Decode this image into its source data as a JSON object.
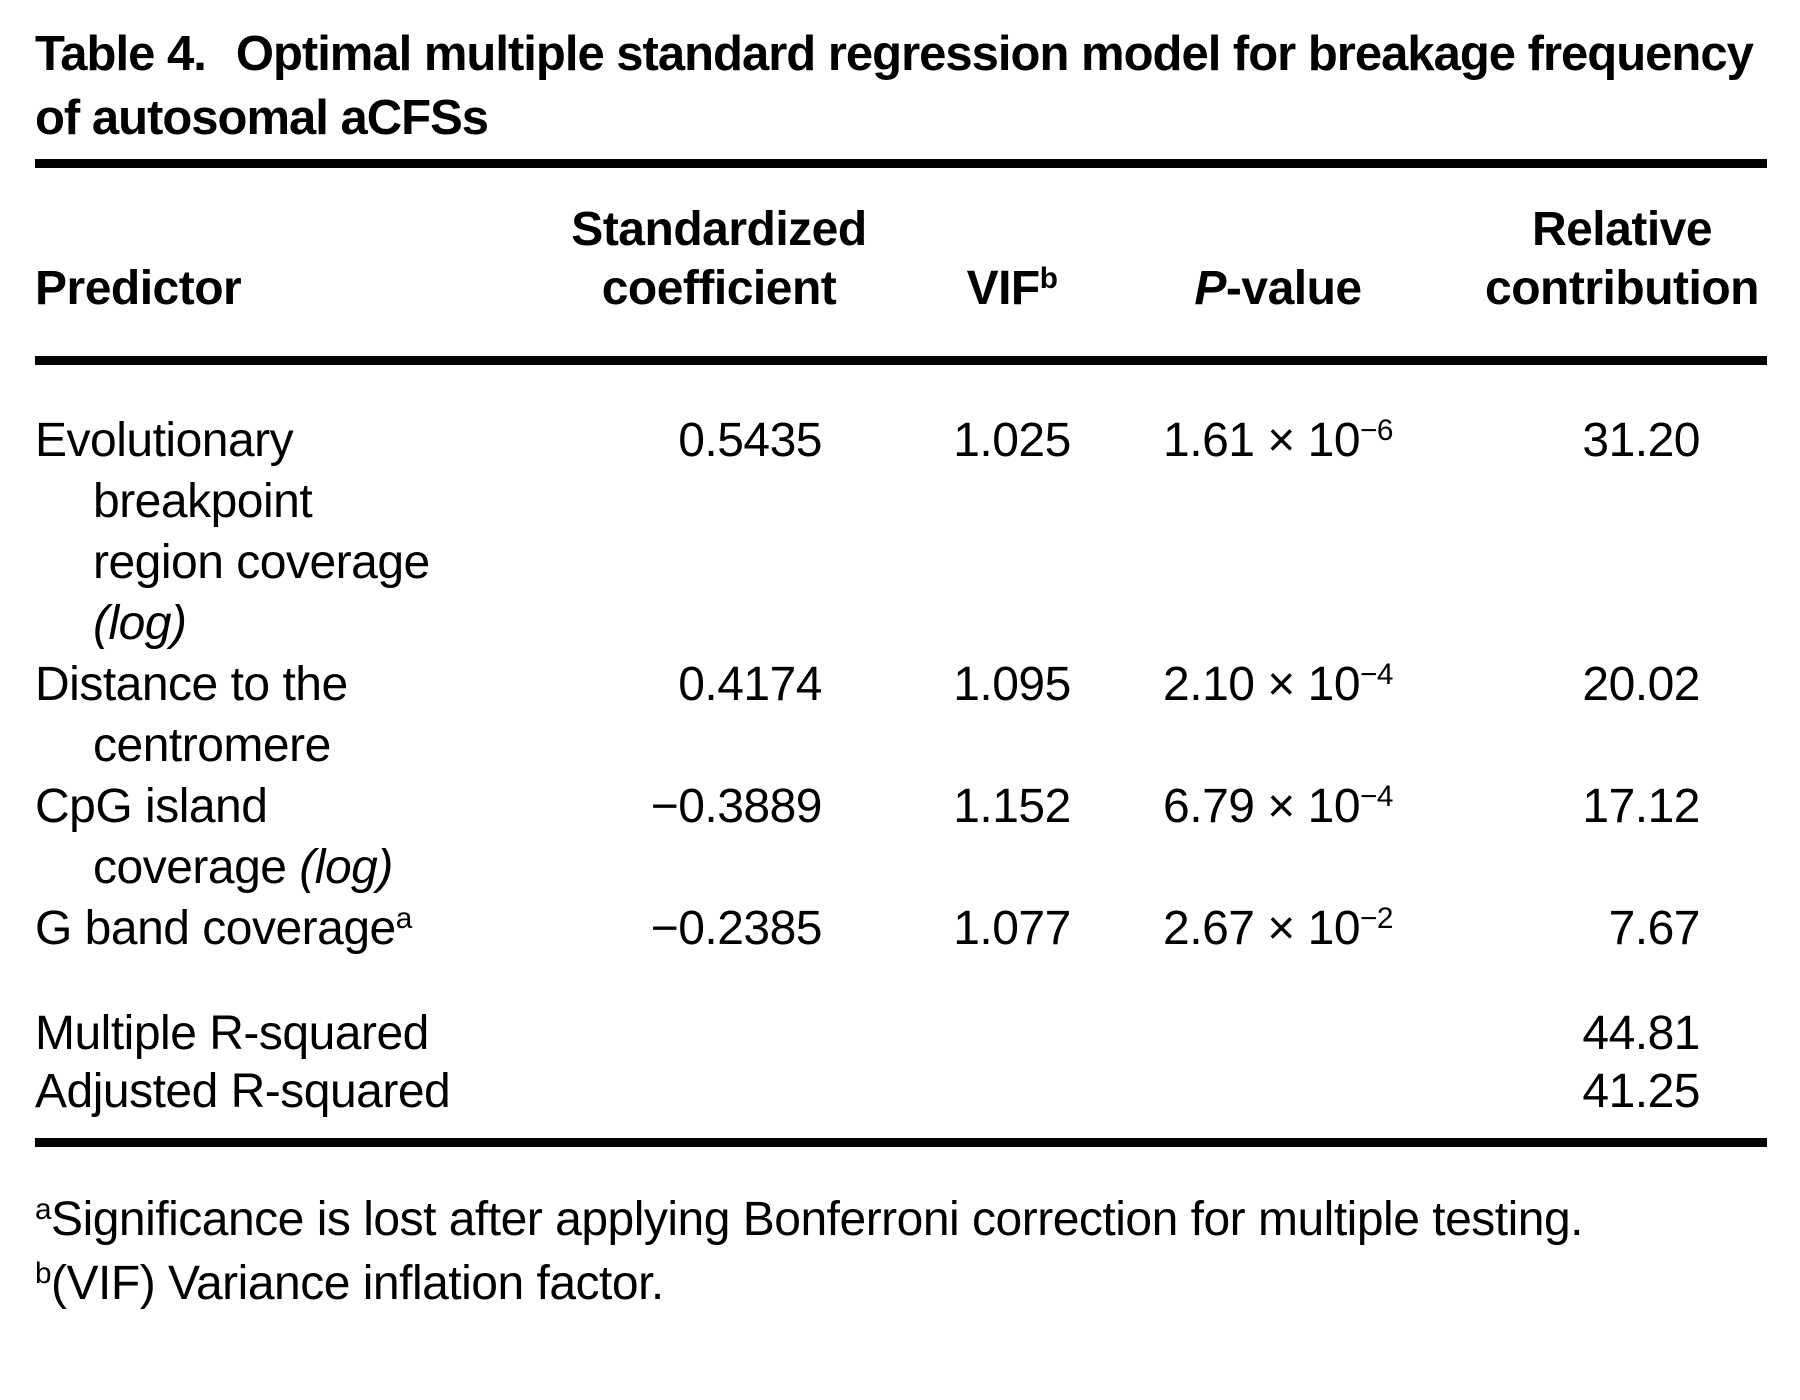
{
  "colors": {
    "background": "#ffffff",
    "text": "#000000",
    "rule": "#000000"
  },
  "title": {
    "label": "Table 4.",
    "text": "Optimal multiple standard regression model for breakage frequency of autosomal aCFSs"
  },
  "table": {
    "header": {
      "predictor": "Predictor",
      "coef_line1": "Standardized",
      "coef_line2": "coefficient",
      "vif": "VIF",
      "vif_sup": "b",
      "pvalue_italic": "P",
      "pvalue_rest": "-value",
      "contrib_line1": "Relative",
      "contrib_line2": "contribution"
    },
    "rows": [
      {
        "predictor": {
          "lines": [
            {
              "indent": false,
              "parts": [
                {
                  "t": "Evolutionary"
                }
              ]
            },
            {
              "indent": true,
              "parts": [
                {
                  "t": "breakpoint"
                }
              ]
            },
            {
              "indent": true,
              "parts": [
                {
                  "t": "region coverage"
                }
              ]
            },
            {
              "indent": true,
              "parts": [
                {
                  "t": "(log)",
                  "italic": true
                }
              ]
            }
          ]
        },
        "coef": "0.5435",
        "vif": "1.025",
        "pvalue": {
          "mantissa": "1.61 × 10",
          "exponent": "−6"
        },
        "contrib": "31.20"
      },
      {
        "predictor": {
          "lines": [
            {
              "indent": false,
              "parts": [
                {
                  "t": "Distance to the"
                }
              ]
            },
            {
              "indent": true,
              "parts": [
                {
                  "t": "centromere"
                }
              ]
            }
          ]
        },
        "coef": "0.4174",
        "vif": "1.095",
        "pvalue": {
          "mantissa": "2.10 × 10",
          "exponent": "−4"
        },
        "contrib": "20.02"
      },
      {
        "predictor": {
          "lines": [
            {
              "indent": false,
              "parts": [
                {
                  "t": "CpG island"
                }
              ]
            },
            {
              "indent": true,
              "parts": [
                {
                  "t": "coverage "
                },
                {
                  "t": "(log)",
                  "italic": true
                }
              ]
            }
          ]
        },
        "coef": "−0.3889",
        "vif": "1.152",
        "pvalue": {
          "mantissa": "6.79 × 10",
          "exponent": "−4"
        },
        "contrib": "17.12"
      },
      {
        "predictor": {
          "lines": [
            {
              "indent": false,
              "parts": [
                {
                  "t": "G band coverage"
                },
                {
                  "t": "a",
                  "sup": true
                }
              ]
            }
          ]
        },
        "coef": "−0.2385",
        "vif": "1.077",
        "pvalue": {
          "mantissa": "2.67 × 10",
          "exponent": "−2"
        },
        "contrib": "7.67"
      }
    ],
    "summary_rows": [
      {
        "label": "Multiple R-squared",
        "value": "44.81"
      },
      {
        "label": "Adjusted R-squared",
        "value": "41.25"
      }
    ]
  },
  "footnotes": [
    {
      "marker": "a",
      "text": "Significance is lost after applying Bonferroni correction for multiple testing."
    },
    {
      "marker": "b",
      "text": "(VIF) Variance inflation factor."
    }
  ]
}
